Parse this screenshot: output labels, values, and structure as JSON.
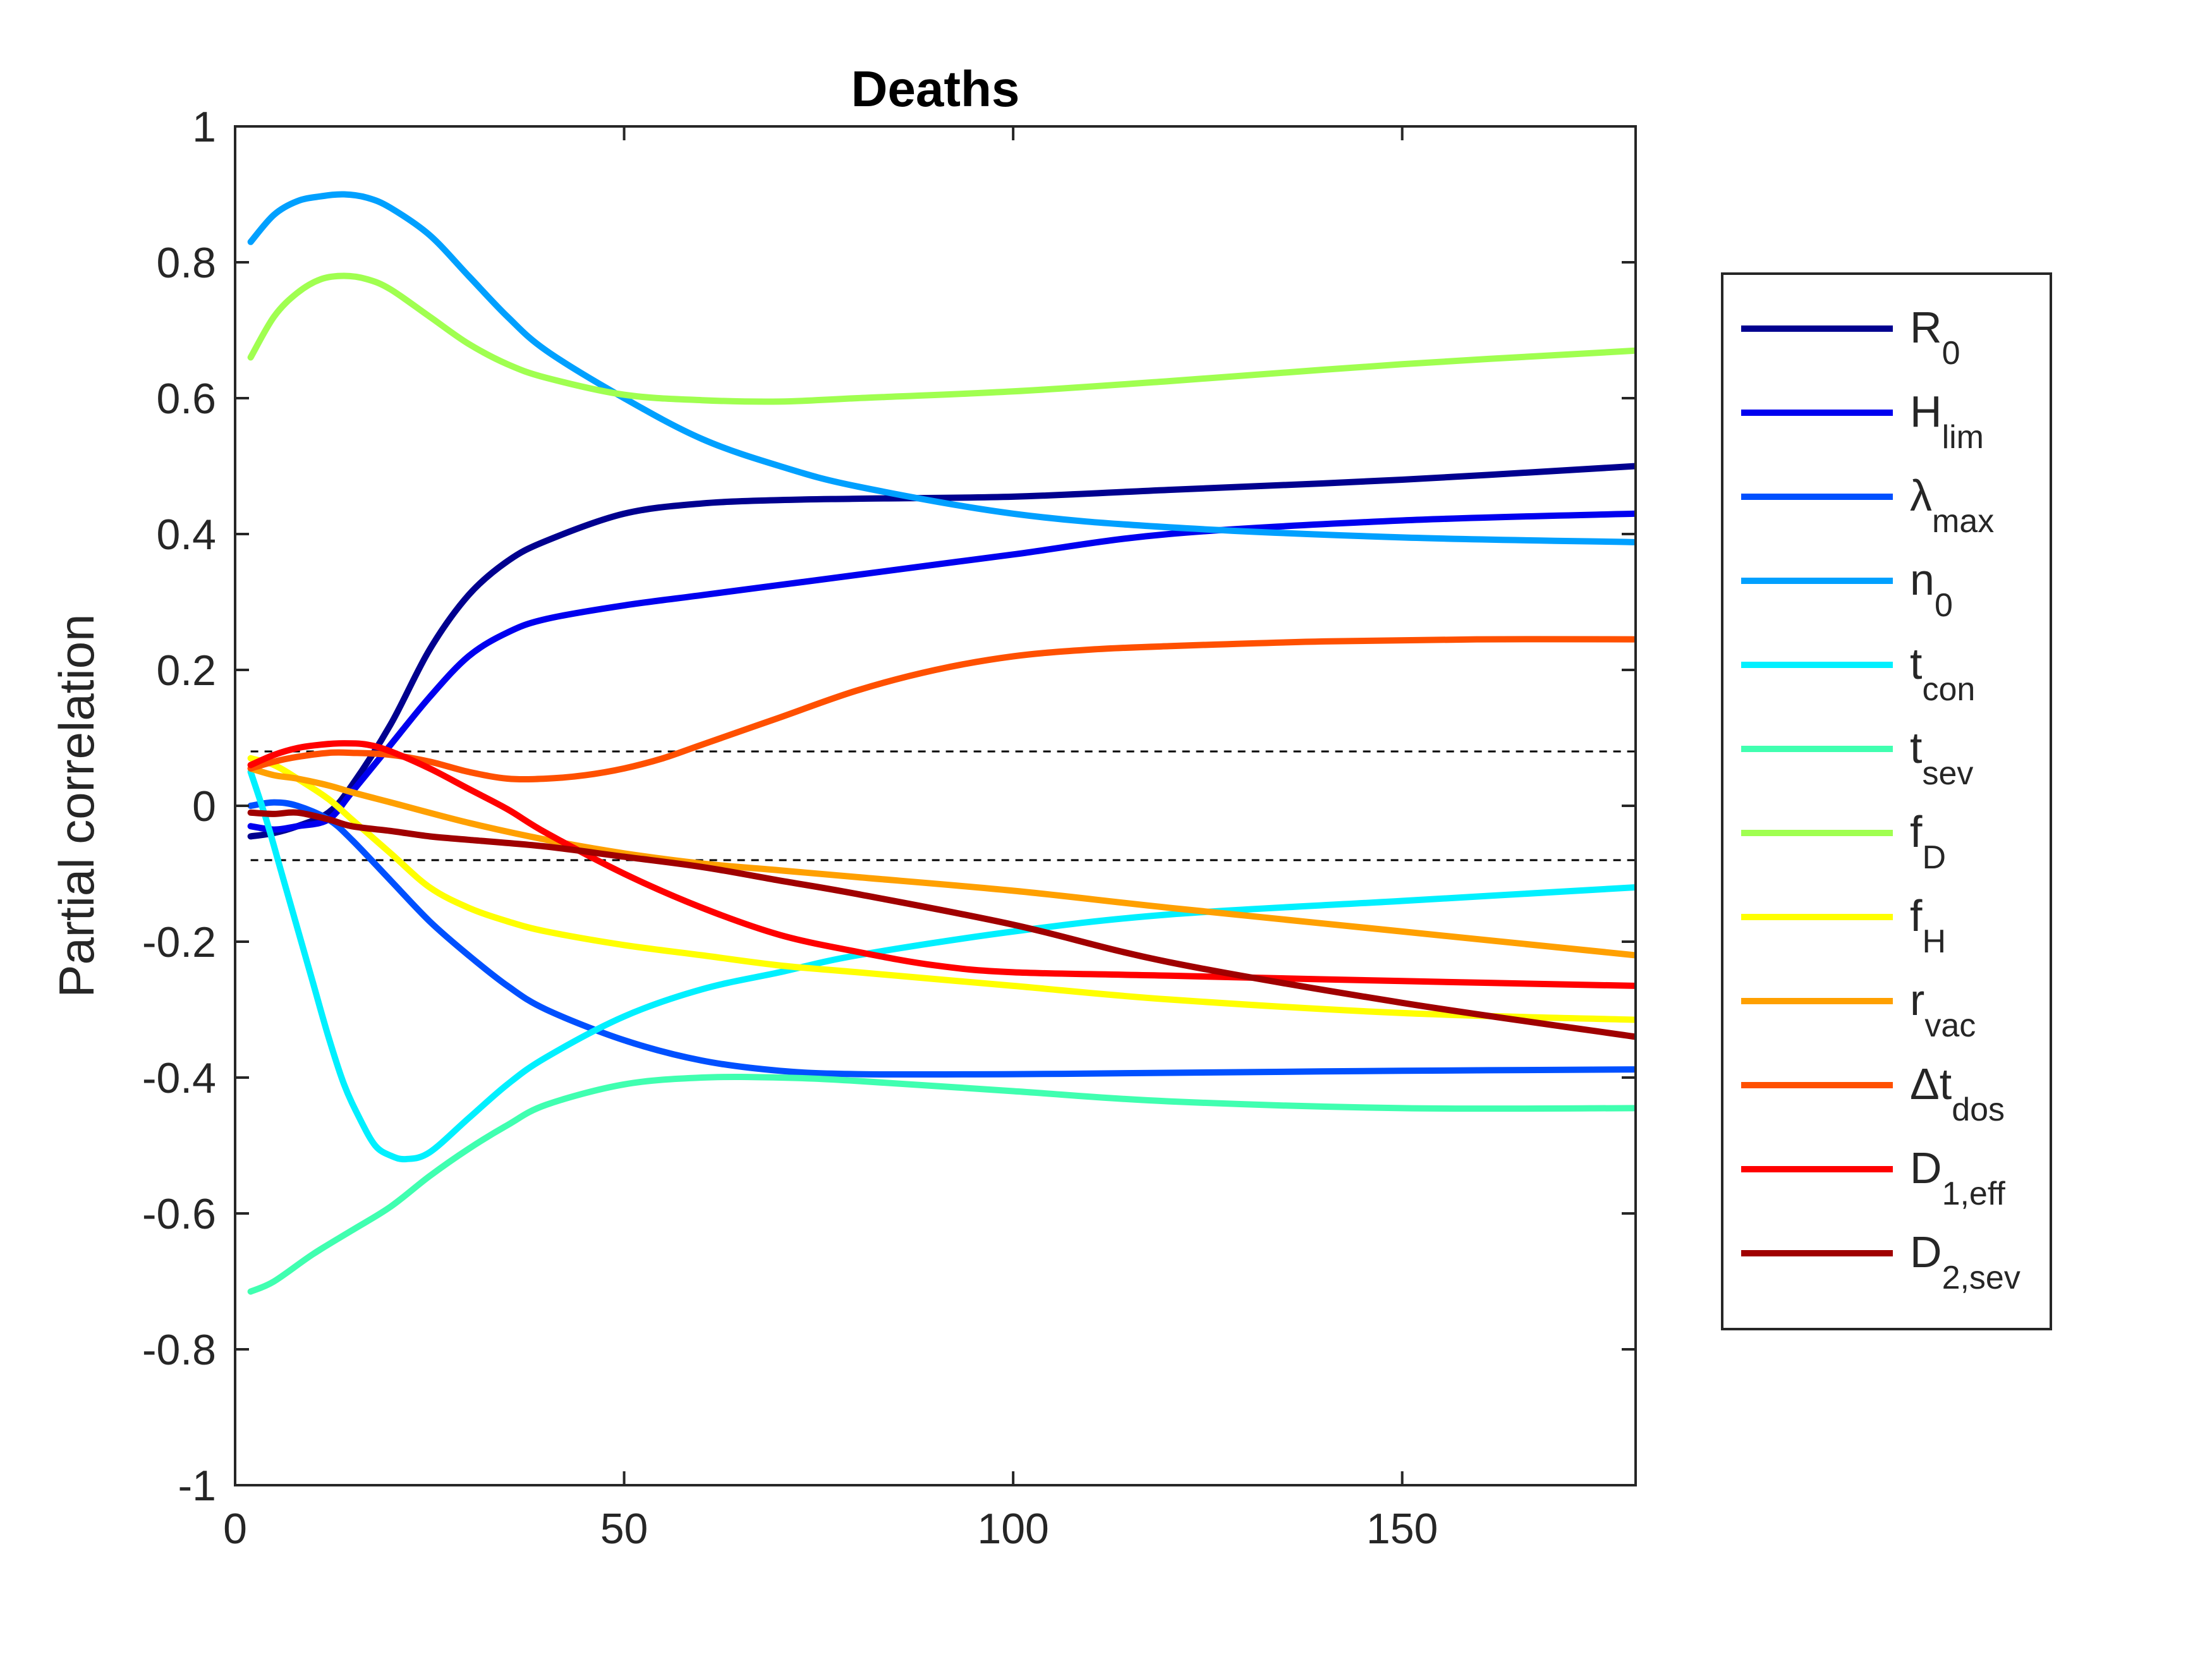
{
  "chart_data": {
    "type": "line",
    "title": "Deaths",
    "xlabel": "",
    "ylabel": "Partial correlation",
    "xlim": [
      0,
      180
    ],
    "ylim": [
      -1,
      1
    ],
    "x_ticks": [
      0,
      50,
      100,
      150
    ],
    "y_ticks": [
      -1,
      -0.8,
      -0.6,
      -0.4,
      -0.2,
      0,
      0.2,
      0.4,
      0.6,
      0.8,
      1
    ],
    "x_tick_labels": [
      "0",
      "50",
      "100",
      "150"
    ],
    "y_tick_labels": [
      "-1",
      "-0.8",
      "-0.6",
      "-0.4",
      "-0.2",
      "0",
      "0.2",
      "0.4",
      "0.6",
      "0.8",
      "1"
    ],
    "grid": false,
    "legend_position": "outside-right",
    "reference_lines": [
      0.08,
      -0.08
    ],
    "series": [
      {
        "name": "R",
        "sub": "0",
        "color": "#00008f",
        "x": [
          2,
          5,
          8,
          12,
          15,
          20,
          25,
          30,
          35,
          40,
          50,
          60,
          70,
          80,
          100,
          120,
          150,
          180
        ],
        "y": [
          -0.045,
          -0.04,
          -0.03,
          -0.01,
          0.03,
          0.12,
          0.23,
          0.31,
          0.36,
          0.39,
          0.43,
          0.445,
          0.45,
          0.452,
          0.455,
          0.465,
          0.48,
          0.5
        ]
      },
      {
        "name": "H",
        "sub": "lim",
        "color": "#0000ef",
        "x": [
          2,
          5,
          8,
          12,
          15,
          20,
          25,
          30,
          35,
          40,
          50,
          60,
          70,
          80,
          100,
          120,
          150,
          180
        ],
        "y": [
          -0.03,
          -0.035,
          -0.03,
          -0.02,
          0.02,
          0.09,
          0.16,
          0.22,
          0.255,
          0.275,
          0.295,
          0.31,
          0.325,
          0.34,
          0.37,
          0.4,
          0.42,
          0.43
        ]
      },
      {
        "name": "λ",
        "sub": "max",
        "color": "#0050ff",
        "x": [
          2,
          5,
          8,
          12,
          15,
          20,
          25,
          30,
          35,
          40,
          50,
          60,
          70,
          80,
          100,
          120,
          150,
          180
        ],
        "y": [
          0.0,
          0.005,
          0.0,
          -0.02,
          -0.05,
          -0.11,
          -0.17,
          -0.22,
          -0.265,
          -0.3,
          -0.345,
          -0.375,
          -0.39,
          -0.395,
          -0.395,
          -0.393,
          -0.39,
          -0.388
        ]
      },
      {
        "name": "n",
        "sub": "0",
        "color": "#00a0ff",
        "x": [
          2,
          5,
          8,
          11,
          14,
          17,
          20,
          25,
          30,
          35,
          40,
          50,
          60,
          70,
          80,
          100,
          120,
          150,
          180
        ],
        "y": [
          0.83,
          0.87,
          0.89,
          0.897,
          0.9,
          0.895,
          0.88,
          0.84,
          0.78,
          0.72,
          0.67,
          0.6,
          0.54,
          0.5,
          0.47,
          0.43,
          0.41,
          0.395,
          0.388
        ]
      },
      {
        "name": "t",
        "sub": "con",
        "color": "#00f0ff",
        "x": [
          2,
          4,
          6,
          8,
          10,
          12,
          14,
          16,
          18,
          20,
          22,
          25,
          30,
          35,
          40,
          50,
          60,
          70,
          80,
          100,
          120,
          150,
          180
        ],
        "y": [
          0.05,
          -0.02,
          -0.1,
          -0.18,
          -0.26,
          -0.34,
          -0.41,
          -0.46,
          -0.5,
          -0.515,
          -0.52,
          -0.51,
          -0.46,
          -0.41,
          -0.37,
          -0.31,
          -0.27,
          -0.245,
          -0.22,
          -0.185,
          -0.16,
          -0.14,
          -0.12
        ]
      },
      {
        "name": "t",
        "sub": "sev",
        "color": "#40ffb0",
        "x": [
          2,
          5,
          10,
          15,
          20,
          25,
          30,
          35,
          40,
          50,
          60,
          70,
          80,
          100,
          120,
          150,
          180
        ],
        "y": [
          -0.715,
          -0.7,
          -0.66,
          -0.625,
          -0.59,
          -0.545,
          -0.505,
          -0.47,
          -0.44,
          -0.41,
          -0.4,
          -0.4,
          -0.405,
          -0.42,
          -0.435,
          -0.445,
          -0.445
        ]
      },
      {
        "name": "f",
        "sub": "D",
        "color": "#a0ff50",
        "x": [
          2,
          5,
          8,
          11,
          14,
          17,
          20,
          25,
          30,
          35,
          40,
          50,
          60,
          70,
          80,
          100,
          120,
          150,
          180
        ],
        "y": [
          0.66,
          0.72,
          0.755,
          0.775,
          0.78,
          0.775,
          0.76,
          0.72,
          0.68,
          0.65,
          0.63,
          0.605,
          0.597,
          0.595,
          0.6,
          0.61,
          0.625,
          0.65,
          0.67
        ]
      },
      {
        "name": "f",
        "sub": "H",
        "color": "#ffff00",
        "x": [
          2,
          5,
          8,
          12,
          15,
          20,
          25,
          30,
          35,
          40,
          50,
          60,
          70,
          80,
          100,
          120,
          150,
          180
        ],
        "y": [
          0.07,
          0.06,
          0.04,
          0.01,
          -0.02,
          -0.07,
          -0.12,
          -0.15,
          -0.17,
          -0.185,
          -0.205,
          -0.22,
          -0.235,
          -0.245,
          -0.265,
          -0.285,
          -0.305,
          -0.315
        ]
      },
      {
        "name": "r",
        "sub": "vac",
        "color": "#ffa000",
        "x": [
          2,
          5,
          8,
          12,
          15,
          20,
          30,
          40,
          50,
          60,
          70,
          80,
          100,
          120,
          150,
          180
        ],
        "y": [
          0.055,
          0.045,
          0.04,
          0.03,
          0.02,
          0.005,
          -0.025,
          -0.05,
          -0.07,
          -0.085,
          -0.095,
          -0.105,
          -0.125,
          -0.15,
          -0.185,
          -0.22
        ]
      },
      {
        "name": "Δt",
        "sub": "dos",
        "color": "#ff5000",
        "x": [
          2,
          5,
          8,
          12,
          15,
          20,
          25,
          30,
          35,
          40,
          45,
          50,
          55,
          60,
          70,
          80,
          90,
          100,
          110,
          120,
          140,
          160,
          180
        ],
        "y": [
          0.055,
          0.065,
          0.072,
          0.078,
          0.078,
          0.075,
          0.065,
          0.05,
          0.04,
          0.04,
          0.045,
          0.055,
          0.07,
          0.09,
          0.13,
          0.17,
          0.2,
          0.22,
          0.23,
          0.235,
          0.242,
          0.245,
          0.245
        ]
      },
      {
        "name": "D",
        "sub": "1,eff",
        "color": "#ff0000",
        "x": [
          2,
          5,
          8,
          11,
          14,
          17,
          20,
          25,
          30,
          35,
          40,
          50,
          60,
          70,
          80,
          90,
          100,
          120,
          150,
          180
        ],
        "y": [
          0.06,
          0.075,
          0.085,
          0.09,
          0.092,
          0.09,
          0.08,
          0.055,
          0.025,
          -0.005,
          -0.04,
          -0.1,
          -0.15,
          -0.19,
          -0.215,
          -0.235,
          -0.245,
          -0.25,
          -0.258,
          -0.265
        ]
      },
      {
        "name": "D",
        "sub": "2,sev",
        "color": "#a00000",
        "x": [
          2,
          5,
          8,
          12,
          15,
          20,
          25,
          30,
          40,
          50,
          60,
          70,
          80,
          100,
          120,
          150,
          180
        ],
        "y": [
          -0.01,
          -0.012,
          -0.01,
          -0.02,
          -0.03,
          -0.037,
          -0.045,
          -0.05,
          -0.06,
          -0.075,
          -0.09,
          -0.11,
          -0.13,
          -0.175,
          -0.23,
          -0.29,
          -0.34
        ]
      }
    ]
  }
}
